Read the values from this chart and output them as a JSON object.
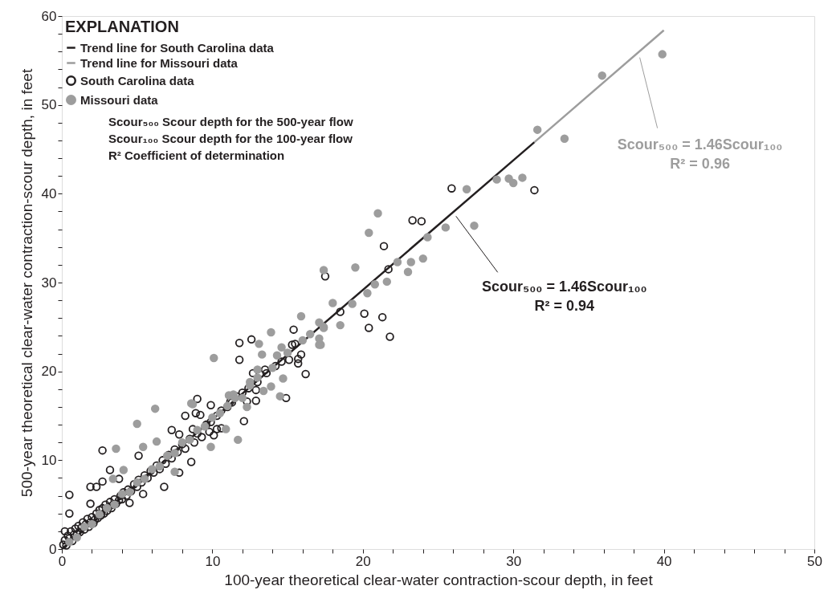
{
  "chart_data": {
    "type": "scatter",
    "xlabel": "100-year theoretical clear-water contraction-scour depth, in feet",
    "ylabel": "500-year theoretical clear-water contraction-scour depth, in feet",
    "legend_title": "EXPLANATION",
    "legend": "top left",
    "grid": false,
    "xlim": [
      0,
      50
    ],
    "ylim": [
      0,
      60
    ],
    "xticks": [
      0,
      {
        "value": 2,
        "label": null
      },
      {
        "value": 4,
        "label": null
      },
      {
        "value": 6,
        "label": null
      },
      {
        "value": 8,
        "label": null
      },
      10,
      {
        "value": 12,
        "label": null
      },
      {
        "value": 14,
        "label": null
      },
      {
        "value": 16,
        "label": null
      },
      {
        "value": 18,
        "label": null
      },
      20,
      {
        "value": 22,
        "label": null
      },
      {
        "value": 24,
        "label": null
      },
      {
        "value": 26,
        "label": null
      },
      {
        "value": 28,
        "label": null
      },
      30,
      {
        "value": 32,
        "label": null
      },
      {
        "value": 34,
        "label": null
      },
      {
        "value": 36,
        "label": null
      },
      {
        "value": 38,
        "label": null
      },
      40,
      {
        "value": 42,
        "label": null
      },
      {
        "value": 44,
        "label": null
      },
      {
        "value": 46,
        "label": null
      },
      {
        "value": 48,
        "label": null
      },
      50
    ],
    "yticks": [
      0,
      {
        "value": 2,
        "label": null
      },
      {
        "value": 4,
        "label": null
      },
      {
        "value": 6,
        "label": null
      },
      {
        "value": 8,
        "label": null
      },
      10,
      {
        "value": 12,
        "label": null
      },
      {
        "value": 14,
        "label": null
      },
      {
        "value": 16,
        "label": null
      },
      {
        "value": 18,
        "label": null
      },
      20,
      {
        "value": 22,
        "label": null
      },
      {
        "value": 24,
        "label": null
      },
      {
        "value": 26,
        "label": null
      },
      {
        "value": 28,
        "label": null
      },
      30,
      {
        "value": 32,
        "label": null
      },
      {
        "value": 34,
        "label": null
      },
      {
        "value": 36,
        "label": null
      },
      {
        "value": 38,
        "label": null
      },
      40,
      {
        "value": 42,
        "label": null
      },
      {
        "value": 44,
        "label": null
      },
      {
        "value": 46,
        "label": null
      },
      {
        "value": 48,
        "label": null
      },
      50,
      {
        "value": 52,
        "label": null
      },
      {
        "value": 54,
        "label": null
      },
      {
        "value": 56,
        "label": null
      },
      {
        "value": 58,
        "label": null
      },
      60
    ],
    "series": [
      {
        "name": "Trend line for South Carolina data",
        "type": "line",
        "marker": "none",
        "color": "#231f20",
        "x": [
          0,
          31.4
        ],
        "values": [
          0,
          45.8
        ]
      },
      {
        "name": "Trend line for Missouri data",
        "type": "line",
        "marker": "none",
        "color": "#9d9d9d",
        "x": [
          31.4,
          40
        ],
        "values": [
          45.8,
          58.4
        ]
      },
      {
        "name": "South Carolina data",
        "marker": "circle",
        "color": "#231f20",
        "x": [
          31.4,
          25.9,
          23.3,
          23.9,
          21.4,
          21.7,
          17.5,
          18.5,
          20.1,
          20.4,
          21.3,
          21.8,
          15.4,
          11.8,
          12.6,
          15.3,
          15.5,
          11.8,
          15.9,
          15.7,
          15.7,
          14.6,
          15.1,
          16.2,
          13.5,
          12.7,
          12.9,
          14.9,
          12.9,
          12.3,
          9.0,
          12.1,
          11.2,
          9.9,
          8.9,
          10.3,
          9.8,
          10.6,
          0.5,
          2.7,
          8.2,
          9.2,
          7.3,
          7.8,
          8.7,
          10.1,
          8.6,
          7.8,
          6.8,
          5.1,
          3.2,
          3.8,
          1.9,
          2.3,
          2.7,
          5.4,
          4.5,
          1.9,
          0.5,
          0.2,
          0.1,
          0.2,
          0.3,
          0.4,
          0.5,
          0.6,
          0.7,
          0.8,
          0.9,
          1.0,
          1.1,
          1.2,
          1.3,
          1.4,
          1.5,
          1.6,
          1.7,
          1.8,
          1.9,
          2.0,
          2.1,
          2.2,
          2.3,
          2.4,
          2.5,
          2.6,
          2.7,
          2.8,
          2.9,
          3.0,
          3.1,
          3.2,
          3.3,
          3.4,
          3.5,
          3.6,
          3.8,
          3.9,
          4.0,
          4.1,
          4.3,
          4.4,
          4.6,
          4.8,
          5.0,
          5.1,
          5.3,
          5.5,
          5.7,
          5.9,
          6.1,
          6.3,
          6.5,
          6.7,
          6.9,
          7.1,
          7.3,
          7.5,
          7.7,
          8.0,
          8.2,
          8.5,
          8.8,
          9.0,
          9.3,
          9.6,
          9.9,
          10.3,
          10.6,
          11.0,
          11.3,
          11.6,
          12.0,
          12.4,
          13.0,
          13.6,
          14.2
        ],
        "values": [
          40.4,
          40.6,
          37.0,
          36.9,
          34.1,
          31.5,
          30.7,
          26.7,
          26.5,
          24.9,
          26.1,
          23.9,
          24.7,
          23.2,
          23.6,
          23.0,
          23.1,
          21.3,
          21.9,
          21.4,
          20.9,
          21.1,
          21.3,
          19.7,
          20.2,
          19.8,
          17.9,
          17.0,
          16.7,
          16.6,
          16.9,
          14.4,
          16.6,
          16.2,
          15.3,
          13.5,
          13.2,
          13.6,
          6.1,
          11.1,
          15.0,
          15.1,
          13.4,
          12.9,
          13.5,
          12.8,
          9.8,
          8.6,
          7.0,
          10.5,
          8.9,
          7.9,
          7.0,
          7.0,
          7.6,
          6.2,
          5.2,
          5.1,
          4.0,
          2.0,
          0.5,
          1.0,
          0.4,
          1.5,
          1.2,
          2.0,
          0.9,
          1.6,
          2.3,
          1.7,
          2.6,
          1.9,
          2.4,
          3.0,
          2.2,
          2.8,
          3.4,
          2.5,
          3.0,
          3.6,
          2.9,
          3.3,
          4.0,
          3.5,
          4.4,
          3.8,
          4.6,
          4.0,
          5.0,
          4.3,
          4.7,
          5.3,
          4.6,
          5.0,
          5.6,
          5.1,
          5.5,
          6.0,
          5.6,
          6.4,
          6.0,
          6.7,
          6.5,
          7.3,
          7.0,
          7.8,
          7.5,
          8.3,
          8.0,
          8.8,
          8.6,
          9.4,
          9.0,
          10.0,
          9.6,
          10.6,
          10.2,
          11.2,
          10.9,
          11.8,
          11.3,
          12.4,
          12.0,
          13.0,
          12.6,
          14.0,
          14.3,
          15.0,
          15.6,
          16.0,
          16.5,
          17.2,
          17.6,
          18.1,
          18.8,
          19.8,
          20.6
        ]
      },
      {
        "name": "Missouri data",
        "marker": "circle",
        "color": "#9d9d9d",
        "x": [
          39.9,
          35.9,
          31.6,
          33.4,
          28.9,
          29.7,
          30.0,
          30.6,
          26.9,
          27.4,
          21.0,
          20.4,
          25.5,
          24.3,
          19.5,
          17.4,
          22.3,
          23.2,
          24.0,
          23.0,
          20.8,
          21.6,
          20.3,
          18.0,
          19.3,
          17.4,
          18.5,
          17.2,
          15.9,
          17.1,
          17.4,
          17.1,
          17.1,
          13.9,
          13.1,
          14.6,
          13.3,
          10.1,
          14.3,
          13.0,
          12.5,
          14.7,
          13.9,
          13.4,
          14.5,
          11.1,
          11.4,
          8.6,
          12.3,
          11.7,
          6.2,
          5.0,
          3.6,
          5.4,
          6.3,
          9.9,
          7.5,
          4.1,
          3.4,
          8.7,
          10.9,
          0.5,
          1.0,
          1.5,
          2.0,
          2.5,
          3.0,
          3.5,
          4.0,
          4.5,
          5.0,
          5.5,
          6.0,
          6.5,
          7.0,
          7.5,
          8.0,
          8.5,
          9.0,
          9.5,
          10.0,
          10.5,
          11.0,
          11.5,
          12.0,
          12.5,
          13.0,
          14.0,
          15.0,
          16.0,
          16.5
        ],
        "values": [
          55.7,
          53.3,
          47.2,
          46.2,
          41.6,
          41.7,
          41.2,
          41.8,
          40.5,
          36.4,
          37.8,
          35.6,
          36.2,
          35.1,
          31.7,
          31.4,
          32.3,
          32.3,
          32.7,
          31.2,
          29.8,
          30.1,
          28.8,
          27.7,
          27.6,
          25.0,
          25.2,
          23.0,
          26.2,
          25.5,
          24.9,
          23.7,
          23.0,
          24.4,
          23.1,
          22.7,
          21.9,
          21.5,
          21.8,
          20.2,
          18.8,
          19.2,
          18.3,
          17.8,
          17.2,
          17.3,
          17.4,
          16.4,
          16.0,
          12.3,
          15.8,
          14.1,
          11.3,
          11.5,
          12.1,
          11.5,
          8.7,
          8.9,
          7.9,
          16.3,
          13.5,
          0.8,
          1.3,
          2.5,
          2.8,
          3.9,
          4.6,
          5.0,
          6.2,
          6.4,
          7.5,
          7.9,
          9.0,
          9.3,
          10.5,
          10.8,
          12.0,
          12.3,
          13.4,
          13.8,
          14.8,
          15.3,
          16.1,
          17.0,
          17.0,
          18.4,
          19.3,
          20.4,
          22.1,
          23.5,
          24.2
        ]
      }
    ],
    "annotations": [
      "Scour₅₀₀ = 1.46Scour₁₀₀\nR² = 0.94",
      "Scour₅₀₀ = 1.46Scour₁₀₀\nR² = 0.96",
      "Scour₅₀₀   Scour depth for the 500-year flow",
      "Scour₁₀₀   Scour depth for the 100-year flow",
      "R²   Coefficient of determination"
    ]
  }
}
